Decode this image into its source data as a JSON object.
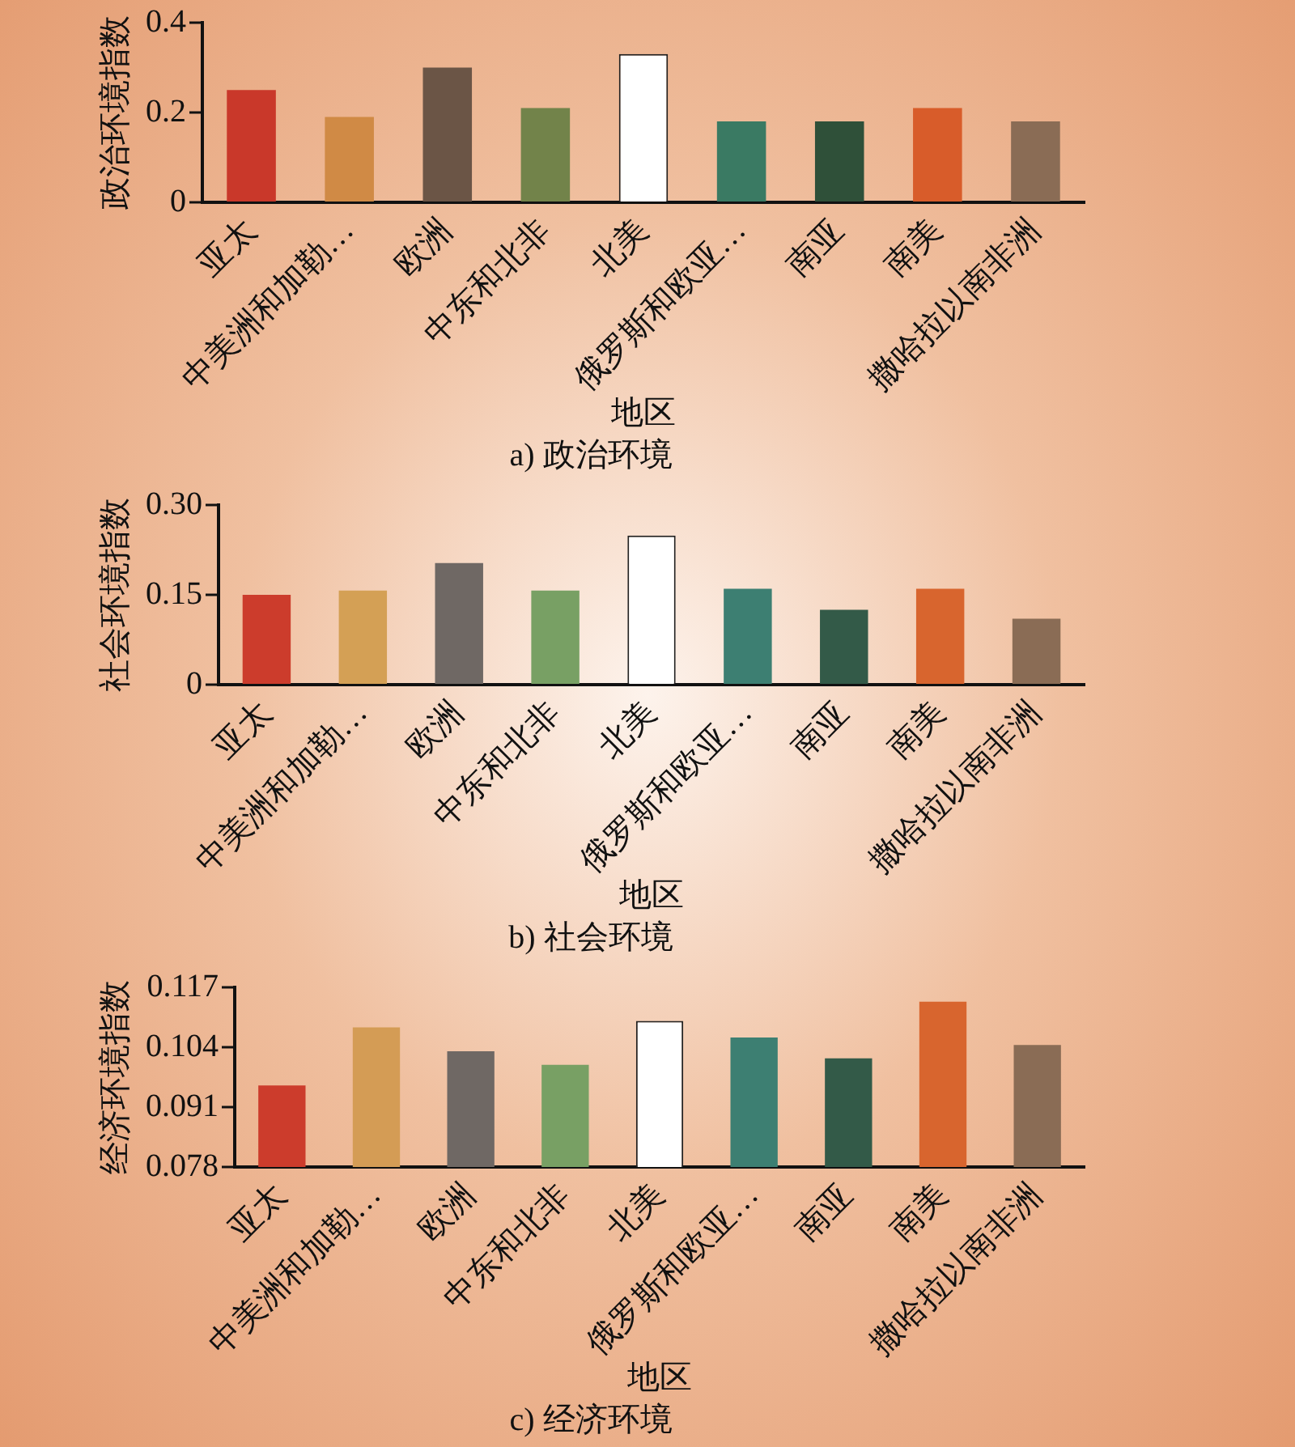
{
  "chart_data": [
    {
      "type": "bar",
      "title": "a) 政治环境",
      "xlabel": "地区",
      "ylabel": "政治环境指数",
      "categories": [
        "亚太",
        "中美洲和加勒…",
        "欧洲",
        "中东和北非",
        "北美",
        "俄罗斯和欧亚…",
        "南亚",
        "南美",
        "撒哈拉以南非洲"
      ],
      "values": [
        0.25,
        0.19,
        0.3,
        0.21,
        0.33,
        0.18,
        0.18,
        0.21,
        0.18
      ],
      "colors": [
        "#c9382a",
        "#d08a45",
        "#6b5546",
        "#72834a",
        "#ffffff",
        "#3a7a63",
        "#2f5039",
        "#d85c2a",
        "#8a6c55"
      ],
      "ylim": [
        0,
        0.4
      ],
      "yticks": [
        0,
        0.2,
        0.4
      ],
      "grid": false,
      "legend": false
    },
    {
      "type": "bar",
      "title": "b) 社会环境",
      "xlabel": "地区",
      "ylabel": "社会环境指数",
      "categories": [
        "亚太",
        "中美洲和加勒…",
        "欧洲",
        "中东和北非",
        "北美",
        "俄罗斯和欧亚…",
        "南亚",
        "南美",
        "撒哈拉以南非洲"
      ],
      "values": [
        0.15,
        0.157,
        0.203,
        0.157,
        0.249,
        0.16,
        0.125,
        0.16,
        0.11
      ],
      "colors": [
        "#cc3c2c",
        "#d4a055",
        "#6f6864",
        "#78a064",
        "#ffffff",
        "#3d7f72",
        "#335a48",
        "#d8652e",
        "#8a6c55"
      ],
      "ylim": [
        0,
        0.3
      ],
      "yticks": [
        0,
        {
          "value": 0.15,
          "label": "0.15"
        },
        {
          "value": 0.3,
          "label": "0.30"
        }
      ],
      "grid": false,
      "legend": false
    },
    {
      "type": "bar",
      "title": "c) 经济环境",
      "xlabel": "地区",
      "ylabel": "经济环境指数",
      "categories": [
        "亚太",
        "中美洲和加勒…",
        "欧洲",
        "中东和北非",
        "北美",
        "俄罗斯和欧亚…",
        "南亚",
        "南美",
        "撒哈拉以南非洲"
      ],
      "values": [
        0.0957,
        0.1083,
        0.1031,
        0.1002,
        0.1097,
        0.1061,
        0.1016,
        0.1139,
        0.1045
      ],
      "colors": [
        "#cc3c2c",
        "#d49c55",
        "#6f6864",
        "#78a064",
        "#ffffff",
        "#3d7f72",
        "#335a48",
        "#d8652e",
        "#8a6c55"
      ],
      "ylim": [
        0.078,
        0.117
      ],
      "yticks": [
        0.078,
        0.091,
        0.104,
        0.117
      ],
      "grid": false,
      "legend": false
    }
  ]
}
